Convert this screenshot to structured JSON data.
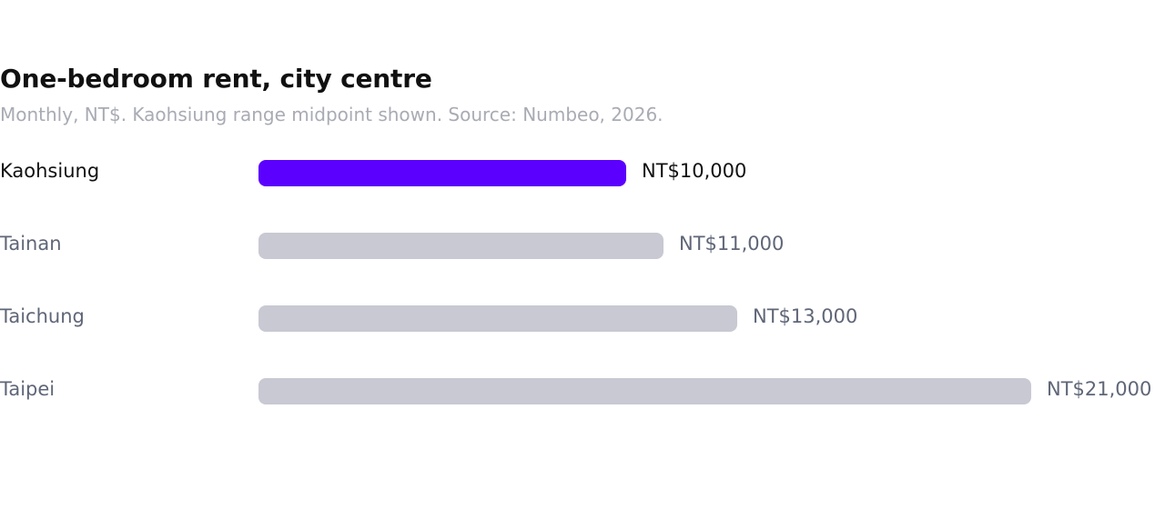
{
  "chart_data": {
    "type": "bar",
    "orientation": "horizontal",
    "title": "One-bedroom rent, city centre",
    "subtitle": "Monthly, NT$. Kaohsiung range midpoint shown. Source: Numbeo, 2026.",
    "categories": [
      "Kaohsiung",
      "Tainan",
      "Taichung",
      "Taipei"
    ],
    "values": [
      10000,
      11000,
      13000,
      21000
    ],
    "value_labels": [
      "NT$10,000",
      "NT$11,000",
      "NT$13,000",
      "NT$21,000"
    ],
    "highlight": "Kaohsiung",
    "xlim": [
      0,
      21000
    ],
    "grid": false,
    "colors": {
      "highlight": "#5b00ff",
      "default": "#c8c9d2"
    }
  }
}
